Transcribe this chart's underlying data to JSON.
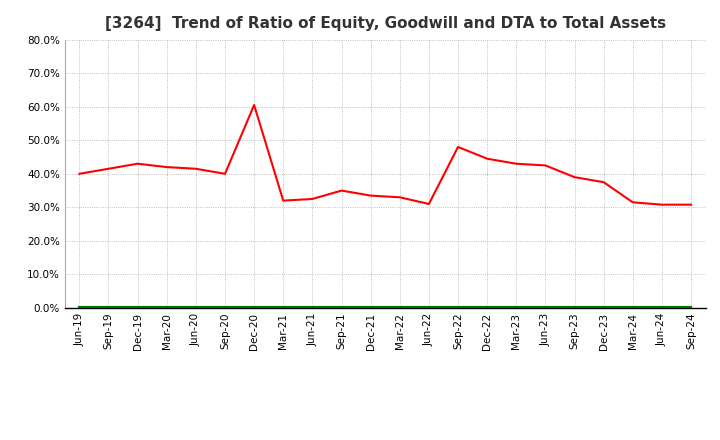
{
  "title": "[3264]  Trend of Ratio of Equity, Goodwill and DTA to Total Assets",
  "x_labels": [
    "Jun-19",
    "Sep-19",
    "Dec-19",
    "Mar-20",
    "Jun-20",
    "Sep-20",
    "Dec-20",
    "Mar-21",
    "Jun-21",
    "Sep-21",
    "Dec-21",
    "Mar-22",
    "Jun-22",
    "Sep-22",
    "Dec-22",
    "Mar-23",
    "Jun-23",
    "Sep-23",
    "Dec-23",
    "Mar-24",
    "Jun-24",
    "Sep-24"
  ],
  "equity": [
    0.4,
    0.415,
    0.43,
    0.42,
    0.415,
    0.4,
    0.605,
    0.32,
    0.325,
    0.35,
    0.335,
    0.33,
    0.31,
    0.48,
    0.445,
    0.43,
    0.425,
    0.39,
    0.375,
    0.315,
    0.308,
    0.308
  ],
  "goodwill": [
    0.004,
    0.004,
    0.004,
    0.004,
    0.004,
    0.004,
    0.004,
    0.004,
    0.004,
    0.004,
    0.004,
    0.004,
    0.004,
    0.004,
    0.004,
    0.004,
    0.004,
    0.004,
    0.004,
    0.004,
    0.004,
    0.004
  ],
  "dta": [
    0.002,
    0.002,
    0.002,
    0.002,
    0.002,
    0.002,
    0.002,
    0.002,
    0.002,
    0.002,
    0.002,
    0.002,
    0.002,
    0.002,
    0.002,
    0.002,
    0.002,
    0.002,
    0.002,
    0.002,
    0.002,
    0.002
  ],
  "equity_color": "#FF0000",
  "goodwill_color": "#0000FF",
  "dta_color": "#008000",
  "ylim": [
    0.0,
    0.8
  ],
  "yticks": [
    0.0,
    0.1,
    0.2,
    0.3,
    0.4,
    0.5,
    0.6,
    0.7,
    0.8
  ],
  "background_color": "#FFFFFF",
  "grid_color": "#AAAAAA",
  "title_fontsize": 11,
  "tick_fontsize": 7.5,
  "legend_fontsize": 9
}
